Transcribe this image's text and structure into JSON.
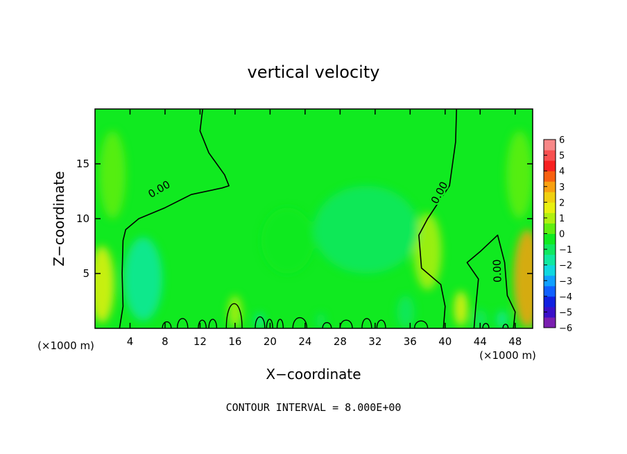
{
  "chart_data": {
    "type": "heatmap",
    "title": "vertical velocity",
    "xlabel": "X−coordinate",
    "ylabel": "Z−coordinate",
    "x_unit": "(×1000 m)",
    "y_unit": "(×1000 m)",
    "xlim": [
      0,
      50
    ],
    "ylim": [
      0,
      20
    ],
    "x_ticks": [
      4,
      8,
      12,
      16,
      20,
      24,
      28,
      32,
      36,
      40,
      44,
      48
    ],
    "y_ticks": [
      5,
      10,
      15
    ],
    "contour_labels": [
      "0.00",
      "0.00",
      "0.00"
    ],
    "footer": "CONTOUR INTERVAL = 8.000E+00",
    "colorbar": {
      "ticks": [
        "6",
        "5",
        "4",
        "3",
        "2",
        "1",
        "0",
        "−1",
        "−2",
        "−3",
        "−4",
        "−5",
        "−6"
      ],
      "range": [
        -6,
        6
      ],
      "colors": [
        "#7a1fb0",
        "#3a10c8",
        "#1020e0",
        "#1060ff",
        "#10a0ff",
        "#10d8e0",
        "#10e8a0",
        "#10e860",
        "#10ea20",
        "#60ee10",
        "#b0f010",
        "#e8f010",
        "#f0d010",
        "#f8a010",
        "#f86010",
        "#f82020",
        "#f85050",
        "#f88888"
      ]
    },
    "zero_contour_paths": [
      [
        [
          12.3,
          20
        ],
        [
          12,
          18
        ],
        [
          13,
          16
        ],
        [
          14.8,
          14
        ],
        [
          15.3,
          13
        ],
        [
          14.5,
          12.8
        ],
        [
          11,
          12.2
        ],
        [
          8,
          11
        ],
        [
          5,
          10
        ],
        [
          3.5,
          9
        ],
        [
          3.2,
          8
        ],
        [
          3.1,
          5
        ],
        [
          3.2,
          2
        ],
        [
          2.8,
          0
        ]
      ],
      [
        [
          41.3,
          20
        ],
        [
          41.2,
          17
        ],
        [
          40.5,
          13
        ],
        [
          38,
          10
        ],
        [
          37,
          8.5
        ],
        [
          37.3,
          5.5
        ],
        [
          39.5,
          4
        ],
        [
          40,
          2
        ],
        [
          39.8,
          0
        ]
      ],
      [
        [
          43.3,
          0
        ],
        [
          43.5,
          2
        ],
        [
          43.8,
          4.5
        ],
        [
          42.5,
          6
        ],
        [
          44,
          7
        ],
        [
          46,
          8.5
        ],
        [
          46.8,
          6
        ],
        [
          47.1,
          3
        ],
        [
          48,
          1.5
        ],
        [
          47.8,
          0
        ]
      ]
    ],
    "surface_bumps": [
      [
        15,
        16.8,
        3.0
      ],
      [
        18.3,
        19.4,
        1.4
      ],
      [
        19.6,
        20.3,
        1.1
      ],
      [
        20.8,
        21.5,
        1.1
      ],
      [
        22.6,
        24.2,
        1.3
      ],
      [
        26,
        27,
        0.7
      ],
      [
        28,
        29.4,
        1.0
      ],
      [
        30.5,
        31.6,
        1.2
      ],
      [
        32.2,
        33.2,
        1.0
      ],
      [
        36.5,
        38,
        0.9
      ],
      [
        7.7,
        8.7,
        0.8
      ],
      [
        9.4,
        10.6,
        1.2
      ],
      [
        11.8,
        12.7,
        1.0
      ],
      [
        13,
        13.9,
        1.1
      ],
      [
        44.3,
        45,
        0.6
      ],
      [
        46.6,
        47.2,
        0.5
      ]
    ],
    "anomalies": [
      {
        "x": 5.5,
        "z": 4.5,
        "rx": 2.2,
        "rz": 3.8,
        "value": -1.9
      },
      {
        "x": 0.8,
        "z": 4.0,
        "rx": 1.4,
        "rz": 3.5,
        "value": 1.8
      },
      {
        "x": 49.4,
        "z": 4.5,
        "rx": 1.6,
        "rz": 4.5,
        "value": 3.2
      },
      {
        "x": 41.8,
        "z": 1.8,
        "rx": 0.8,
        "rz": 1.6,
        "value": 1.9
      },
      {
        "x": 38.0,
        "z": 7.0,
        "rx": 1.6,
        "rz": 3.5,
        "value": 0.7
      },
      {
        "x": 44.0,
        "z": 0.8,
        "rx": 0.8,
        "rz": 0.9,
        "value": -1.0
      },
      {
        "x": 46.5,
        "z": 0.8,
        "rx": 0.6,
        "rz": 0.8,
        "value": -1.4
      },
      {
        "x": 31.0,
        "z": 9.0,
        "rx": 6.0,
        "rz": 4.0,
        "value": -0.7
      },
      {
        "x": 22.0,
        "z": 8.0,
        "rx": 3.0,
        "rz": 3.0,
        "value": -0.5
      },
      {
        "x": 18.8,
        "z": 0.7,
        "rx": 0.5,
        "rz": 0.7,
        "value": -1.5
      },
      {
        "x": 25.8,
        "z": 0.7,
        "rx": 0.5,
        "rz": 0.7,
        "value": -1.3
      },
      {
        "x": 35.5,
        "z": 1.5,
        "rx": 1.0,
        "rz": 1.5,
        "value": -1.2
      },
      {
        "x": 16.0,
        "z": 1.5,
        "rx": 0.8,
        "rz": 1.5,
        "value": 1.2
      },
      {
        "x": 2.0,
        "z": 14.0,
        "rx": 1.5,
        "rz": 4.0,
        "value": 0.6
      },
      {
        "x": 48.5,
        "z": 14.0,
        "rx": 1.5,
        "rz": 4.0,
        "value": 0.6
      }
    ]
  }
}
